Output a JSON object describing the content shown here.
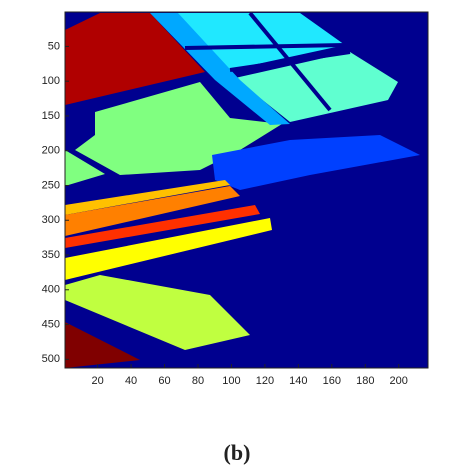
{
  "chart_data": {
    "type": "image",
    "caption": "(b)",
    "xlim": [
      0.5,
      217.5
    ],
    "ylim": [
      512.5,
      0.5
    ],
    "xticks": [
      20,
      40,
      60,
      80,
      100,
      120,
      140,
      160,
      180,
      200
    ],
    "yticks": [
      50,
      100,
      150,
      200,
      250,
      300,
      350,
      400,
      450,
      500
    ]
  }
}
